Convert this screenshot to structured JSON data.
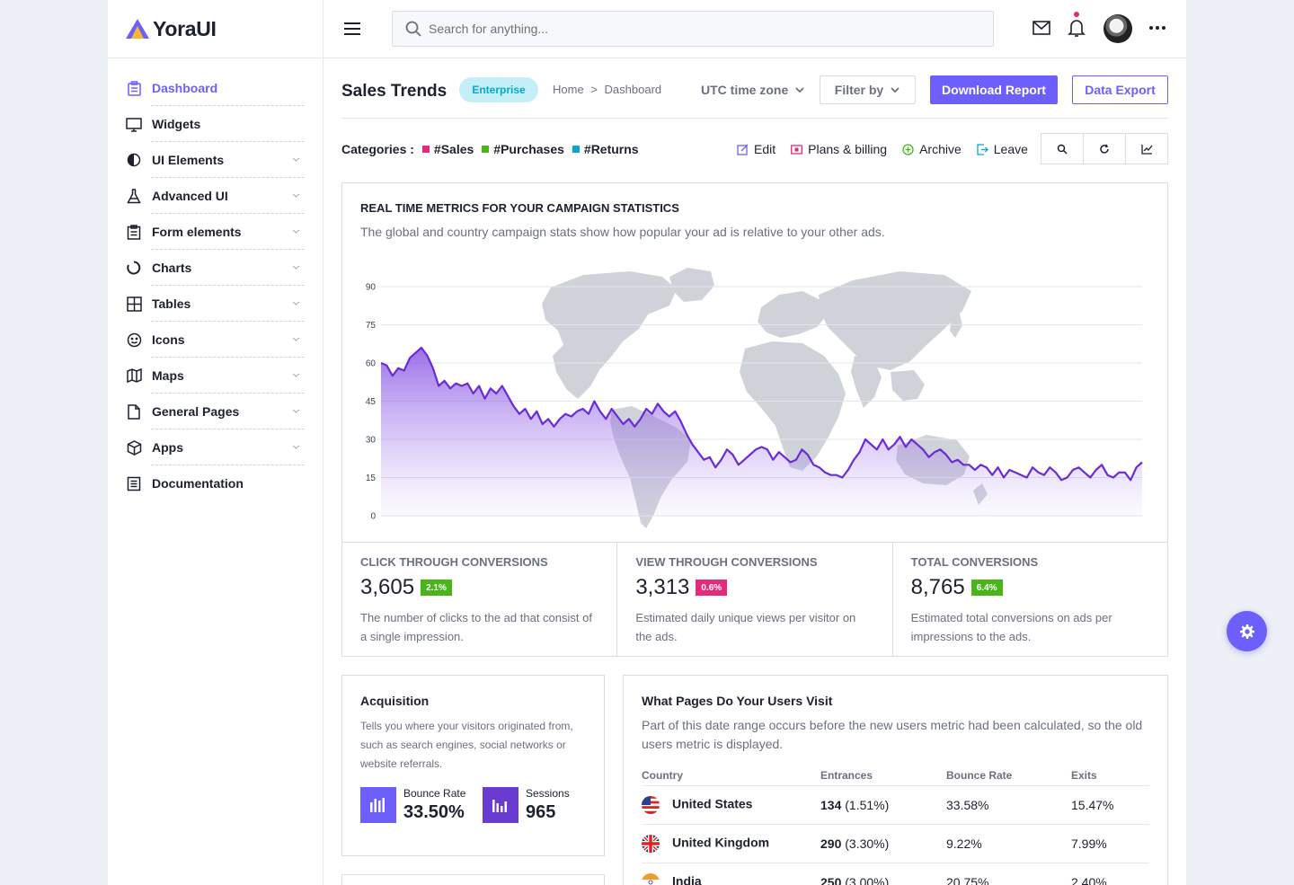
{
  "brand": {
    "name": "YoraUI",
    "colors": {
      "accent": "#6c5ffc",
      "pink": "#e6297b",
      "green": "#4ab519",
      "cyan": "#05a9cc"
    }
  },
  "sidebar": {
    "items": [
      {
        "label": "Dashboard",
        "icon": "clipboard-icon",
        "active": true,
        "submenu": false
      },
      {
        "label": "Widgets",
        "icon": "monitor-icon",
        "active": false,
        "submenu": false
      },
      {
        "label": "UI Elements",
        "icon": "contrast-icon",
        "active": false,
        "submenu": true
      },
      {
        "label": "Advanced UI",
        "icon": "flask-icon",
        "active": false,
        "submenu": true
      },
      {
        "label": "Form elements",
        "icon": "form-icon",
        "active": false,
        "submenu": true
      },
      {
        "label": "Charts",
        "icon": "donut-chart-icon",
        "active": false,
        "submenu": true
      },
      {
        "label": "Tables",
        "icon": "table-icon",
        "active": false,
        "submenu": true
      },
      {
        "label": "Icons",
        "icon": "smiley-icon",
        "active": false,
        "submenu": true
      },
      {
        "label": "Maps",
        "icon": "map-icon",
        "active": false,
        "submenu": true
      },
      {
        "label": "General Pages",
        "icon": "file-icon",
        "active": false,
        "submenu": true
      },
      {
        "label": "Apps",
        "icon": "cube-icon",
        "active": false,
        "submenu": true
      },
      {
        "label": "Documentation",
        "icon": "document-icon",
        "active": false,
        "submenu": false
      }
    ]
  },
  "header": {
    "search_placeholder": "Search for anything..."
  },
  "page": {
    "title": "Sales Trends",
    "badge": "Enterprise",
    "breadcrumb": {
      "home": "Home",
      "separator": ">",
      "current": "Dashboard"
    },
    "timezone": "UTC time zone",
    "filter_label": "Filter by",
    "download_label": "Download Report",
    "export_label": "Data Export"
  },
  "categories": {
    "label": "Categories :",
    "items": [
      {
        "label": "#Sales",
        "color": "#e6297b"
      },
      {
        "label": "#Purchases",
        "color": "#4ab519"
      },
      {
        "label": "#Returns",
        "color": "#05a9cc"
      }
    ]
  },
  "actions": [
    {
      "label": "Edit",
      "icon": "edit-icon",
      "color": "#6c5ffc"
    },
    {
      "label": "Plans & billing",
      "icon": "billing-icon",
      "color": "#e6297b"
    },
    {
      "label": "Archive",
      "icon": "archive-icon",
      "color": "#4ab519"
    },
    {
      "label": "Leave",
      "icon": "leave-icon",
      "color": "#05a9cc"
    }
  ],
  "tools": [
    "search-icon",
    "refresh-icon",
    "line-chart-icon"
  ],
  "metrics_card": {
    "title": "REAL TIME METRICS FOR YOUR CAMPAIGN STATISTICS",
    "subtitle": "The global and country campaign stats show how popular your ad is relative to your other ads."
  },
  "chart_data": {
    "type": "area",
    "title": "",
    "xlabel": "",
    "ylabel": "",
    "ylim": [
      0,
      90
    ],
    "yticks": [
      0,
      15,
      30,
      45,
      60,
      75,
      90
    ],
    "grid": true,
    "background": "world-map",
    "series": [
      {
        "color": "#6c2bd9",
        "values": [
          60,
          59,
          55,
          58,
          57,
          62,
          64,
          66,
          63,
          58,
          51,
          53,
          50,
          52,
          51,
          52,
          48,
          51,
          46,
          50,
          48,
          51,
          47,
          43,
          40,
          42,
          38,
          41,
          36,
          38,
          35,
          38,
          40,
          39,
          41,
          42,
          40,
          45,
          41,
          38,
          42,
          39,
          36,
          38,
          35,
          38,
          42,
          40,
          44,
          41,
          39,
          41,
          37,
          32,
          28,
          25,
          22,
          23,
          19,
          22,
          26,
          24,
          20,
          22,
          24,
          26,
          27,
          26,
          22,
          25,
          23,
          21,
          22,
          26,
          24,
          20,
          19,
          17,
          16,
          16,
          15,
          18,
          22,
          25,
          30,
          28,
          26,
          30,
          26,
          28,
          31,
          27,
          30,
          28,
          26,
          23,
          25,
          26,
          24,
          21,
          22,
          20,
          20,
          18,
          20,
          19,
          16,
          19,
          15,
          18,
          17,
          16,
          15,
          19,
          17,
          16,
          19,
          17,
          14,
          15,
          18,
          19,
          17,
          15,
          18,
          20,
          16,
          15,
          17,
          17,
          14,
          19,
          21
        ]
      }
    ]
  },
  "stats": [
    {
      "label": "CLICK THROUGH CONVERSIONS",
      "value": "3,605",
      "badge": "2.1%",
      "badge_color": "#4ab519",
      "desc": "The number of clicks to the ad that consist of a single impression."
    },
    {
      "label": "VIEW THROUGH CONVERSIONS",
      "value": "3,313",
      "badge": "0.6%",
      "badge_color": "#e6297b",
      "desc": "Estimated daily unique views per visitor on the ads."
    },
    {
      "label": "TOTAL CONVERSIONS",
      "value": "8,765",
      "badge": "6.4%",
      "badge_color": "#4ab519",
      "desc": "Estimated total conversions on ads per impressions to the ads."
    }
  ],
  "acquisition": {
    "title": "Acquisition",
    "desc": "Tells you where your visitors originated from, such as search engines, social networks or website referrals.",
    "bounce_label": "Bounce Rate",
    "bounce_value": "33.50%",
    "sessions_label": "Sessions",
    "sessions_value": "965"
  },
  "pages": {
    "title": "What Pages Do Your Users Visit",
    "desc": "Part of this date range occurs before the new users metric had been calculated, so the old users metric is displayed.",
    "columns": [
      "Country",
      "Entrances",
      "Bounce Rate",
      "Exits"
    ],
    "rows": [
      {
        "country": "United States",
        "flag": "us-flag-icon",
        "entrances": "134",
        "entrances_pct": "(1.51%)",
        "bounce": "33.58%",
        "exits": "15.47%"
      },
      {
        "country": "United Kingdom",
        "flag": "uk-flag-icon",
        "entrances": "290",
        "entrances_pct": "(3.30%)",
        "bounce": "9.22%",
        "exits": "7.99%"
      },
      {
        "country": "India",
        "flag": "india-flag-icon",
        "entrances": "250",
        "entrances_pct": "(3.00%)",
        "bounce": "20.75%",
        "exits": "2.40%"
      }
    ]
  }
}
